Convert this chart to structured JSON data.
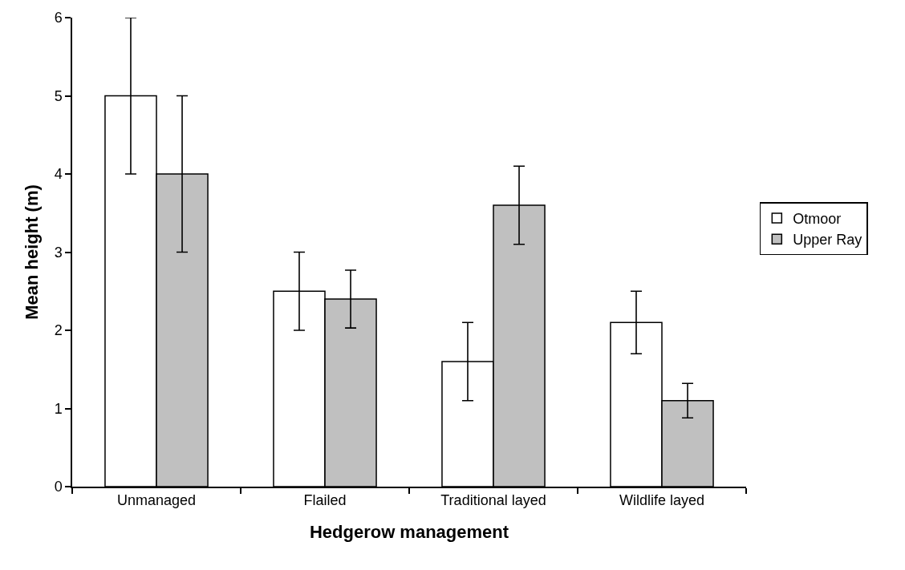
{
  "chart_data": {
    "type": "bar",
    "xlabel": "Hedgerow management",
    "ylabel": "Mean height (m)",
    "categories": [
      "Unmanaged",
      "Flailed",
      "Traditional layed",
      "Wildlife layed"
    ],
    "series": [
      {
        "name": "Otmoor",
        "color": "#ffffff",
        "values": [
          5.0,
          2.5,
          1.6,
          2.1
        ],
        "errors": [
          1.0,
          0.5,
          0.5,
          0.4
        ]
      },
      {
        "name": "Upper Ray",
        "color": "#c0c0c0",
        "values": [
          4.0,
          2.4,
          3.6,
          1.1
        ],
        "errors": [
          1.0,
          0.37,
          0.5,
          0.22
        ]
      }
    ],
    "ylim": [
      0,
      6
    ],
    "yticks": [
      0,
      1,
      2,
      3,
      4,
      5,
      6
    ],
    "grid": false,
    "legend": "right"
  }
}
